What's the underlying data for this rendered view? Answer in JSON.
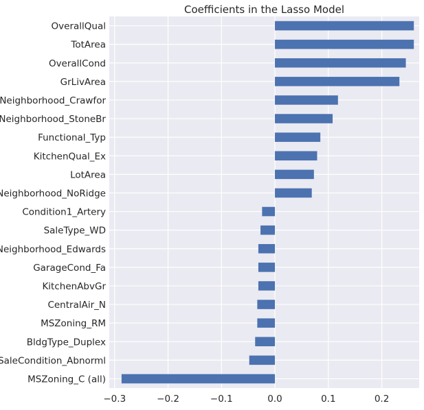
{
  "chart_data": {
    "type": "bar",
    "orientation": "horizontal",
    "title": "Coefficients in the Lasso Model",
    "xlabel": "",
    "ylabel": "",
    "xlim": [
      -0.31,
      0.27
    ],
    "xticks": [
      -0.3,
      -0.2,
      -0.1,
      0.0,
      0.1,
      0.2
    ],
    "xtick_labels": [
      "−0.3",
      "−0.2",
      "−0.1",
      "0.0",
      "0.1",
      "0.2"
    ],
    "grid": true,
    "bar_color": "#4c72b0",
    "background": "#eaeaf2",
    "categories": [
      "OverallQual",
      "TotArea",
      "OverallCond",
      "GrLivArea",
      "Neighborhood_Crawfor",
      "Neighborhood_StoneBr",
      "Functional_Typ",
      "KitchenQual_Ex",
      "LotArea",
      "Neighborhood_NoRidge",
      "Condition1_Artery",
      "SaleType_WD",
      "Neighborhood_Edwards",
      "GarageCond_Fa",
      "KitchenAbvGr",
      "CentralAir_N",
      "MSZoning_RM",
      "BldgType_Duplex",
      "SaleCondition_Abnorml",
      "MSZoning_C (all)"
    ],
    "values": [
      0.26,
      0.26,
      0.245,
      0.233,
      0.118,
      0.108,
      0.085,
      0.079,
      0.073,
      0.069,
      -0.024,
      -0.027,
      -0.031,
      -0.031,
      -0.031,
      -0.033,
      -0.033,
      -0.037,
      -0.048,
      -0.287
    ]
  }
}
